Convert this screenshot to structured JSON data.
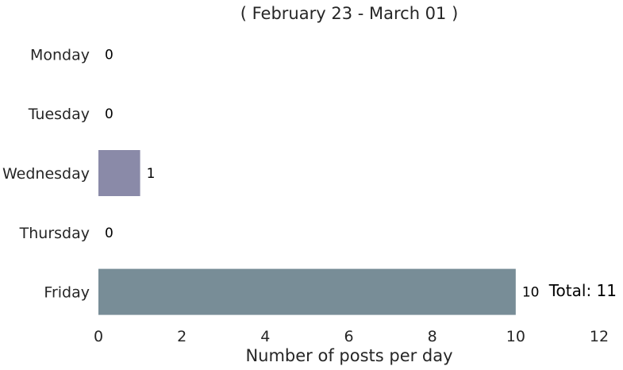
{
  "chart_data": {
    "type": "bar",
    "orientation": "horizontal",
    "title": "( February 23 - March 01 )",
    "xlabel": "Number of posts per day",
    "ylabel": "",
    "categories": [
      "Monday",
      "Tuesday",
      "Wednesday",
      "Thursday",
      "Friday"
    ],
    "values": [
      0,
      0,
      1,
      0,
      10
    ],
    "value_labels": [
      "0",
      "0",
      "1",
      "0",
      "10"
    ],
    "bar_colors": [
      "#8d8ca6",
      "#8a94a8",
      "#8a8aa8",
      "#7d8fa6",
      "#788d97"
    ],
    "xlim": [
      0,
      12
    ],
    "xticks": [
      0,
      2,
      4,
      6,
      8,
      10,
      12
    ],
    "xtick_labels": [
      "0",
      "2",
      "4",
      "6",
      "8",
      "10",
      "12"
    ],
    "grid": false,
    "annotation": "Total: 11"
  }
}
